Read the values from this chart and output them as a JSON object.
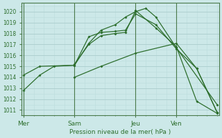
{
  "title": "Pression niveau de la mer( hPa )",
  "ylabel_values": [
    1011,
    1012,
    1013,
    1014,
    1015,
    1016,
    1017,
    1018,
    1019,
    1020
  ],
  "ylim": [
    1010.5,
    1020.8
  ],
  "xlim": [
    -0.1,
    9.6
  ],
  "background_color": "#cce8e8",
  "grid_major_color": "#aacccc",
  "grid_minor_color": "#bbdddd",
  "line_color": "#2d6e2d",
  "spine_color": "#4a7a4a",
  "xtick_labels": [
    "Mer",
    "Sam",
    "Jeu",
    "Ven"
  ],
  "xtick_positions": [
    0.0,
    2.5,
    5.5,
    7.5
  ],
  "series": [
    {
      "x": [
        0.0,
        0.8,
        1.5,
        2.5,
        3.2,
        3.8,
        4.5,
        5.0,
        5.5,
        6.0,
        6.5,
        7.5,
        9.5
      ],
      "y": [
        1012.8,
        1014.2,
        1015.0,
        1015.1,
        1017.1,
        1018.3,
        1018.8,
        1019.5,
        1020.0,
        1020.3,
        1019.5,
        1016.7,
        1011.5
      ]
    },
    {
      "x": [
        0.0,
        0.8,
        2.5,
        3.2,
        3.8,
        4.5,
        5.0,
        5.5,
        6.5,
        7.5,
        8.5,
        9.5
      ],
      "y": [
        1014.2,
        1015.0,
        1015.1,
        1017.7,
        1018.1,
        1018.2,
        1018.3,
        1019.8,
        1018.8,
        1016.6,
        1014.8,
        1010.8
      ]
    },
    {
      "x": [
        2.5,
        3.2,
        3.8,
        4.5,
        5.0,
        5.5,
        6.5,
        7.5,
        8.5,
        9.5
      ],
      "y": [
        1015.2,
        1017.0,
        1017.8,
        1018.0,
        1018.1,
        1020.1,
        1018.5,
        1016.8,
        1011.8,
        1010.7
      ]
    },
    {
      "x": [
        2.5,
        3.8,
        5.5,
        7.5,
        8.5,
        9.5
      ],
      "y": [
        1014.0,
        1015.0,
        1016.2,
        1017.1,
        1014.8,
        1010.8
      ]
    }
  ]
}
